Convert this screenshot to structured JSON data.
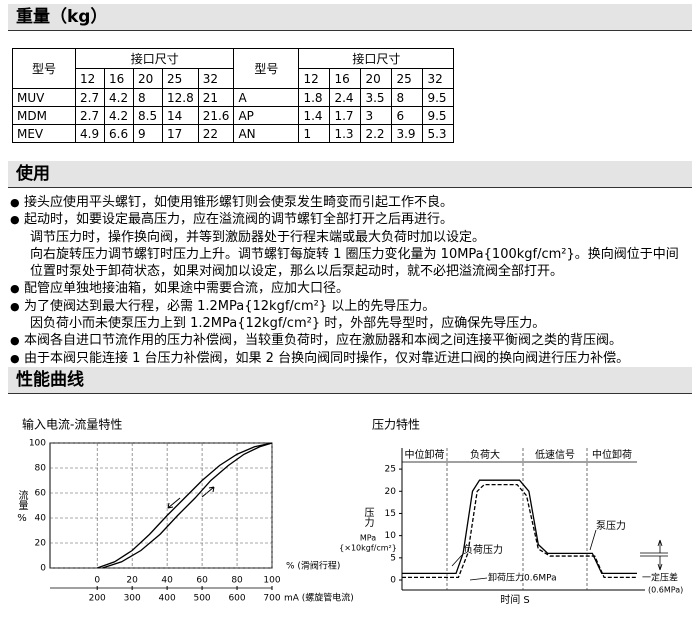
{
  "weight": {
    "title": "重量（kg）",
    "table": {
      "model_header": "型号",
      "port_header": "接口尺寸",
      "sizes": [
        "12",
        "16",
        "20",
        "25",
        "32"
      ],
      "left_rows": [
        [
          "MUV",
          "2.7",
          "4.2",
          "8",
          "12.8",
          "21"
        ],
        [
          "MDM",
          "2.7",
          "4.2",
          "8.5",
          "14",
          "21.6"
        ],
        [
          "MEV",
          "4.9",
          "6.6",
          "9",
          "17",
          "22"
        ]
      ],
      "right_rows": [
        [
          "A",
          "1.8",
          "2.4",
          "3.5",
          "8",
          "9.5"
        ],
        [
          "AP",
          "1.4",
          "1.7",
          "3",
          "6",
          "9.5"
        ],
        [
          "AN",
          "1",
          "1.3",
          "2.2",
          "3.9",
          "5.3"
        ]
      ]
    }
  },
  "usage": {
    "title": "使用",
    "items": [
      [
        "接头应使用平头螺钉，如使用锥形螺钉则会使泵发生畸变而引起工作不良。"
      ],
      [
        "起动时，如要设定最高压力，应在溢流阀的调节螺钉全部打开之后再进行。",
        "调节压力时，操作换向阀，并等到激励器处于行程末端或最大负荷时加以设定。",
        "向右旋转压力调节螺钉时压力上升。调节螺钉每旋转 1 圈压力变化量为 10MPa{100kgf/cm²}。换向阀位于中间",
        "位置时泵处于卸荷状态，如果对阀加以设定，那么以后泵起动时，就不必把溢流阀全部打开。"
      ],
      [
        "配管应单独地接油箱，如果途中需要合流，应加大口径。"
      ],
      [
        "为了使阀达到最大行程，必需 1.2MPa{12kgf/cm²} 以上的先导压力。",
        "因负荷小而未使泵压力上到 1.2MPa{12kgf/cm²} 时，外部先导型时，应确保先导压力。"
      ],
      [
        "本阀各自进口节流作用的压力补偿阀，当较重负荷时，应在激励器和本阀之间连接平衡阀之类的背压阀。"
      ],
      [
        "由于本阀只能连接 1 台压力补偿阀，如果 2 台换向阀同时操作，仅对靠近进口阀的换向阀进行压力补偿。"
      ]
    ]
  },
  "performance": {
    "title": "性能曲线",
    "charts": [
      {
        "type": "line",
        "title": "输入电流-流量特性",
        "ylabel": "流量",
        "yunit": "%",
        "xlabel": "% (滑阀行程)",
        "x2label": "mA (螺旋管电流)",
        "xlim": [
          -27,
          100
        ],
        "xticks": [
          0,
          20,
          40,
          60,
          80,
          100
        ],
        "x2lim": [
          65,
          700
        ],
        "x2ticks": [
          200,
          300,
          400,
          500,
          600,
          700
        ],
        "ylim": [
          0,
          100
        ],
        "yticks": [
          0,
          20,
          40,
          60,
          80,
          100
        ],
        "grid": true,
        "series": [
          {
            "color": "#000000",
            "x": [
              0,
              10,
              20,
              30,
              40,
              50,
              60,
              70,
              80,
              90,
              100
            ],
            "values": [
              0,
              5,
              14,
              27,
              42,
              56,
              70,
              82,
              91,
              97,
              100
            ]
          },
          {
            "color": "#000000",
            "x": [
              3,
              14,
              25,
              36,
              46,
              56,
              65,
              75,
              84,
              93,
              100
            ],
            "values": [
              0,
              5,
              14,
              27,
              42,
              56,
              70,
              82,
              91,
              97,
              100
            ]
          }
        ]
      },
      {
        "type": "line",
        "title": "压力特性",
        "phases": [
          "中位卸荷",
          "负荷大",
          "低速信号",
          "中位卸荷"
        ],
        "ylabel": "压力",
        "yunit": "MPa",
        "yunit2": "{×10kgf/cm²}",
        "xlabel": "时间 S",
        "xlim": [
          0,
          10
        ],
        "ylim": [
          -2.25,
          27.5
        ],
        "yticks": [
          0,
          5,
          10,
          15,
          20,
          25
        ],
        "series": [
          {
            "label": "泵压力",
            "color": "#000000",
            "dash": false,
            "x": [
              0,
              2.3,
              2.6,
              3.0,
              3.3,
              5.0,
              5.4,
              5.8,
              6.2,
              8.1,
              8.5,
              10
            ],
            "values": [
              1.5,
              1.5,
              6,
              20,
              22.5,
              22.5,
              20,
              8,
              6,
              6,
              1.5,
              1.5
            ]
          },
          {
            "label": "负荷压力",
            "color": "#000000",
            "dash": true,
            "x": [
              0,
              2.4,
              2.8,
              3.2,
              3.5,
              4.9,
              5.3,
              5.8,
              6.3,
              8.2,
              8.6,
              10
            ],
            "values": [
              0.6,
              0.6,
              6,
              20,
              21.5,
              21.5,
              19,
              7,
              5.4,
              5.4,
              0.6,
              0.6
            ]
          }
        ],
        "annotations": [
          "卸荷压力0.6MPa",
          "一定压差",
          "(0.6MPa)"
        ]
      }
    ]
  }
}
